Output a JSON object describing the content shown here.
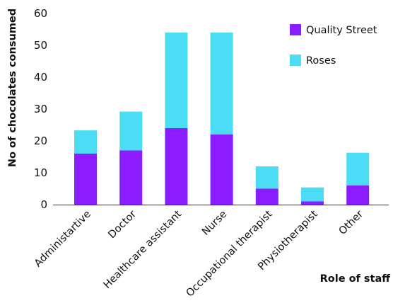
{
  "chart_data": {
    "type": "bar",
    "stacked": true,
    "title": "",
    "xlabel": "Role of staff",
    "ylabel": "No of chocolates consumed",
    "ylim": [
      0,
      60
    ],
    "yticks": [
      "0",
      "10",
      "20",
      "30",
      "40",
      "50",
      "60"
    ],
    "grid": false,
    "legend_position": "top-right",
    "categories": [
      "Administartive",
      "Doctor",
      "Healthcare assistant",
      "Nurse",
      "Occupational therapist",
      "Physiotherapist",
      "Other"
    ],
    "series": [
      {
        "name": "Quality Street",
        "color": "#8a1cff",
        "values": [
          16,
          17,
          24,
          22,
          5,
          1,
          6
        ]
      },
      {
        "name": "Roses",
        "color": "#4ddcf5",
        "values": [
          7.3,
          12.2,
          30,
          32,
          7,
          4.4,
          10.3
        ]
      }
    ]
  }
}
